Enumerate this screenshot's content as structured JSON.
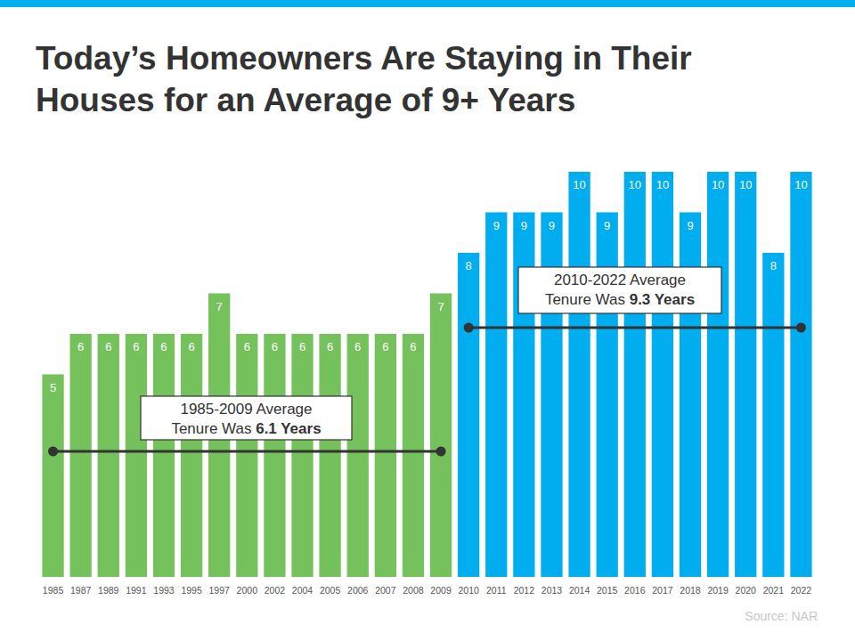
{
  "chart_data": {
    "type": "bar",
    "title": "Today’s Homeowners Are Staying in Their Houses for an Average of 9+ Years",
    "categories": [
      "1985",
      "1987",
      "1989",
      "1991",
      "1993",
      "1995",
      "1997",
      "2000",
      "2002",
      "2004",
      "2005",
      "2006",
      "2007",
      "2008",
      "2009",
      "2010",
      "2011",
      "2012",
      "2013",
      "2014",
      "2015",
      "2016",
      "2017",
      "2018",
      "2019",
      "2020",
      "2021",
      "2022"
    ],
    "values": [
      5,
      6,
      6,
      6,
      6,
      6,
      7,
      6,
      6,
      6,
      6,
      6,
      6,
      6,
      7,
      8,
      9,
      9,
      9,
      10,
      9,
      10,
      10,
      9,
      10,
      10,
      8,
      10
    ],
    "colors": [
      "#75c15b",
      "#75c15b",
      "#75c15b",
      "#75c15b",
      "#75c15b",
      "#75c15b",
      "#75c15b",
      "#75c15b",
      "#75c15b",
      "#75c15b",
      "#75c15b",
      "#75c15b",
      "#75c15b",
      "#75c15b",
      "#75c15b",
      "#00adef",
      "#00adef",
      "#00adef",
      "#00adef",
      "#00adef",
      "#00adef",
      "#00adef",
      "#00adef",
      "#00adef",
      "#00adef",
      "#00adef",
      "#00adef",
      "#00adef"
    ],
    "ylim": [
      0,
      10
    ],
    "data_labels": true,
    "tick_labels": "x",
    "grid": false,
    "annotations": [
      {
        "text": "1985-2009 Average",
        "text2": "Tenure Was",
        "highlight": "6.1 Years"
      },
      {
        "text": "2010-2022 Average",
        "text2": "Tenure Was",
        "highlight": "9.3 Years"
      }
    ],
    "source": "Source: NAR"
  }
}
